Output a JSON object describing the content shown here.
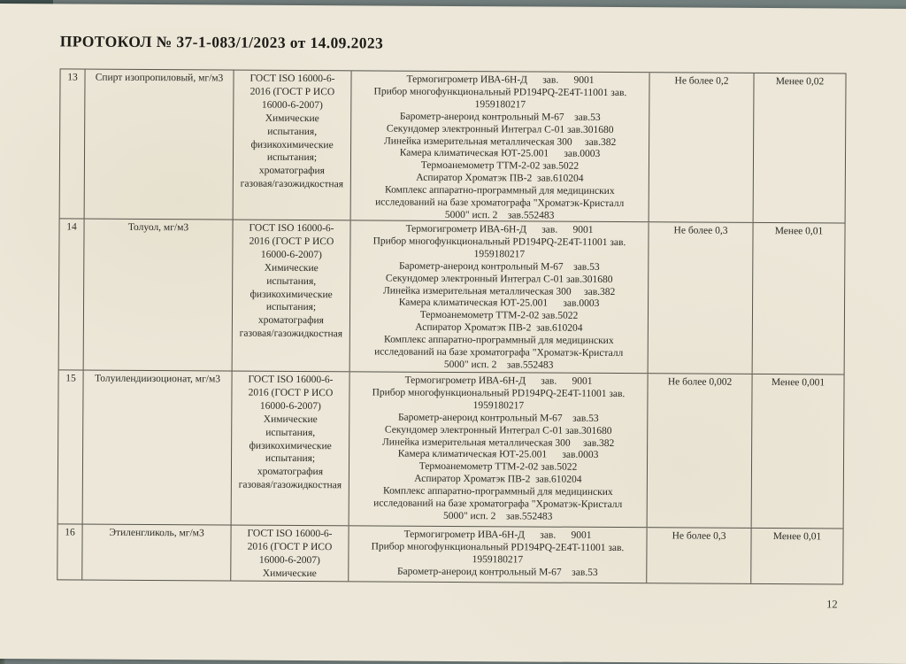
{
  "document": {
    "title": "ПРОТОКОЛ № 37-1-083/1/2023 от 14.09.2023",
    "page_number": "12"
  },
  "table": {
    "rows": [
      {
        "num": "13",
        "substance": "Спирт изопропиловый, мг/м3",
        "method_lines": [
          "ГОСТ ISO 16000-6-",
          "2016 (ГОСТ Р ИСО",
          "16000-6-2007)",
          "Химические",
          "испытания,",
          "физикохимические",
          "испытания;",
          "хроматография",
          "газовая/газожидкостная"
        ],
        "equipment_lines": [
          "Термогигрометр ИВА-6Н-Д      зав.      9001",
          "Прибор многофункциональный PD194PQ-2E4T-11001 зав.",
          "1959180217",
          "Барометр-анероид контрольный М-67    зав.53",
          "Секундомер электронный Интеграл С-01 зав.301680",
          "Линейка измерительная металлическая 300     зав.382",
          "Камера климатическая ЮТ-25.001      зав.0003",
          "Термоанемометр ТТМ-2-02 зав.5022",
          "Аспиратор Хроматэк ПВ-2  зав.610204",
          "Комплекс аппаратно-программный для медицинских",
          "исследований на базе хроматографа \"Хроматэк-Кристалл",
          "5000\" исп. 2    зав.552483"
        ],
        "norm": "Не более 0,2",
        "result": "Менее 0,02"
      },
      {
        "num": "14",
        "substance": "Толуол, мг/м3",
        "method_lines": [
          "ГОСТ ISO 16000-6-",
          "2016 (ГОСТ Р ИСО",
          "16000-6-2007)",
          "Химические",
          "испытания,",
          "физикохимические",
          "испытания;",
          "хроматография",
          "газовая/газожидкостная"
        ],
        "equipment_lines": [
          "Термогигрометр ИВА-6Н-Д      зав.      9001",
          "Прибор многофункциональный PD194PQ-2E4T-11001 зав.",
          "1959180217",
          "Барометр-анероид контрольный М-67    зав.53",
          "Секундомер электронный Интеграл С-01 зав.301680",
          "Линейка измерительная металлическая 300     зав.382",
          "Камера климатическая ЮТ-25.001      зав.0003",
          "Термоанемометр ТТМ-2-02 зав.5022",
          "Аспиратор Хроматэк ПВ-2  зав.610204",
          "Комплекс аппаратно-программный для медицинских",
          "исследований на базе хроматографа \"Хроматэк-Кристалл",
          "5000\" исп. 2    зав.552483"
        ],
        "norm": "Не более 0,3",
        "result": "Менее 0,01"
      },
      {
        "num": "15",
        "substance": "Толуилендиизоционат, мг/м3",
        "method_lines": [
          "ГОСТ ISO 16000-6-",
          "2016 (ГОСТ Р ИСО",
          "16000-6-2007)",
          "Химические",
          "испытания,",
          "физикохимические",
          "испытания;",
          "хроматография",
          "газовая/газожидкостная"
        ],
        "equipment_lines": [
          "Термогигрометр ИВА-6Н-Д      зав.      9001",
          "Прибор многофункциональный PD194PQ-2E4T-11001 зав.",
          "1959180217",
          "Барометр-анероид контрольный М-67    зав.53",
          "Секундомер электронный Интеграл С-01 зав.301680",
          "Линейка измерительная металлическая 300     зав.382",
          "Камера климатическая ЮТ-25.001      зав.0003",
          "Термоанемометр ТТМ-2-02 зав.5022",
          "Аспиратор Хроматэк ПВ-2  зав.610204",
          "Комплекс аппаратно-программный для медицинских",
          "исследований на базе хроматографа \"Хроматэк-Кристалл",
          "5000\" исп. 2    зав.552483"
        ],
        "norm": "Не более 0,002",
        "result": "Менее 0,001"
      },
      {
        "num": "16",
        "substance": "Этиленгликоль, мг/м3",
        "method_lines": [
          "ГОСТ ISO 16000-6-",
          "2016 (ГОСТ Р ИСО",
          "16000-6-2007)",
          "Химические"
        ],
        "equipment_lines": [
          "Термогигрометр ИВА-6Н-Д      зав.      9001",
          "Прибор многофункциональный PD194PQ-2E4T-11001 зав.",
          "1959180217",
          "Барометр-анероид контрольный М-67    зав.53"
        ],
        "norm": "Не более 0,3",
        "result": "Менее 0,01"
      }
    ]
  }
}
